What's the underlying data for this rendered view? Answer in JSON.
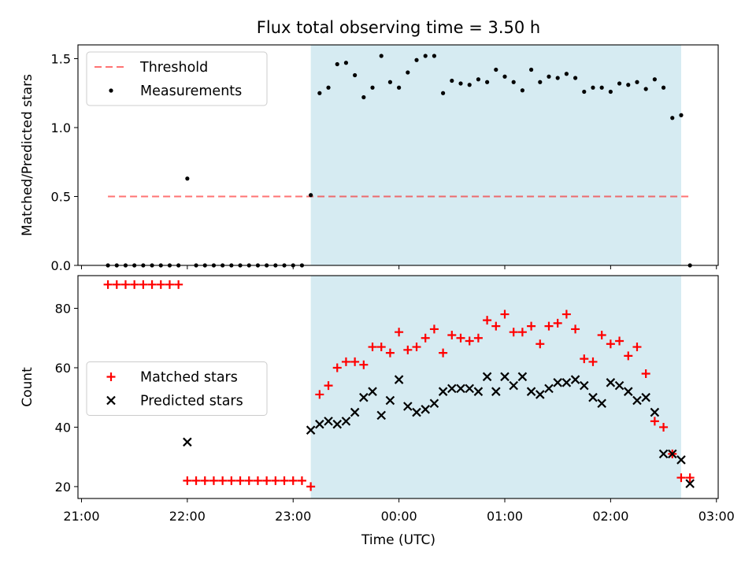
{
  "chart_data": {
    "title": "Flux total observing time = 3.50 h",
    "colors": {
      "observing_window": "#add8e6",
      "threshold": "#ff0000",
      "measurements": "#000000",
      "matched": "#ff0000",
      "predicted": "#000000"
    },
    "observing_window": {
      "start": "23:10",
      "end": "02:40"
    },
    "x_axis": {
      "label": "Time (UTC)",
      "range": [
        "20:58",
        "03:01"
      ],
      "ticks": [
        "21:00",
        "22:00",
        "23:00",
        "00:00",
        "01:00",
        "02:00",
        "03:00"
      ]
    },
    "panels": [
      {
        "type": "scatter",
        "ylabel": "Matched/Predicted stars",
        "ylim": [
          0,
          1.6
        ],
        "yticks": [
          "0.0",
          "0.5",
          "1.0",
          "1.5"
        ],
        "legend_position": "upper-left",
        "threshold": {
          "name": "Threshold",
          "value": 0.5,
          "x_range": [
            "21:15",
            "02:45"
          ]
        },
        "series": [
          {
            "name": "Measurements",
            "points": [
              [
                "21:15",
                0
              ],
              [
                "21:20",
                0
              ],
              [
                "21:25",
                0
              ],
              [
                "21:30",
                0
              ],
              [
                "21:35",
                0
              ],
              [
                "21:40",
                0
              ],
              [
                "21:45",
                0
              ],
              [
                "21:50",
                0
              ],
              [
                "21:55",
                0
              ],
              [
                "22:00",
                0.63
              ],
              [
                "22:05",
                0
              ],
              [
                "22:10",
                0
              ],
              [
                "22:15",
                0
              ],
              [
                "22:20",
                0
              ],
              [
                "22:25",
                0
              ],
              [
                "22:30",
                0
              ],
              [
                "22:35",
                0
              ],
              [
                "22:40",
                0
              ],
              [
                "22:45",
                0
              ],
              [
                "22:50",
                0
              ],
              [
                "22:55",
                0
              ],
              [
                "23:00",
                0
              ],
              [
                "23:05",
                0
              ],
              [
                "23:10",
                0.51
              ],
              [
                "23:15",
                1.25
              ],
              [
                "23:20",
                1.29
              ],
              [
                "23:25",
                1.46
              ],
              [
                "23:30",
                1.47
              ],
              [
                "23:35",
                1.38
              ],
              [
                "23:40",
                1.22
              ],
              [
                "23:45",
                1.29
              ],
              [
                "23:50",
                1.52
              ],
              [
                "23:55",
                1.33
              ],
              [
                "00:00",
                1.29
              ],
              [
                "00:05",
                1.4
              ],
              [
                "00:10",
                1.49
              ],
              [
                "00:15",
                1.52
              ],
              [
                "00:20",
                1.52
              ],
              [
                "00:25",
                1.25
              ],
              [
                "00:30",
                1.34
              ],
              [
                "00:35",
                1.32
              ],
              [
                "00:40",
                1.31
              ],
              [
                "00:45",
                1.35
              ],
              [
                "00:50",
                1.33
              ],
              [
                "00:55",
                1.42
              ],
              [
                "01:00",
                1.37
              ],
              [
                "01:05",
                1.33
              ],
              [
                "01:10",
                1.27
              ],
              [
                "01:15",
                1.42
              ],
              [
                "01:20",
                1.33
              ],
              [
                "01:25",
                1.37
              ],
              [
                "01:30",
                1.36
              ],
              [
                "01:35",
                1.39
              ],
              [
                "01:40",
                1.36
              ],
              [
                "01:45",
                1.26
              ],
              [
                "01:50",
                1.29
              ],
              [
                "01:55",
                1.29
              ],
              [
                "02:00",
                1.26
              ],
              [
                "02:05",
                1.32
              ],
              [
                "02:10",
                1.31
              ],
              [
                "02:15",
                1.33
              ],
              [
                "02:20",
                1.28
              ],
              [
                "02:25",
                1.35
              ],
              [
                "02:30",
                1.29
              ],
              [
                "02:35",
                1.07
              ],
              [
                "02:40",
                1.09
              ],
              [
                "02:45",
                0
              ]
            ]
          }
        ]
      },
      {
        "type": "scatter",
        "ylabel": "Count",
        "ylim": [
          16,
          91
        ],
        "yticks": [
          "20",
          "40",
          "60",
          "80"
        ],
        "legend_position": "center-left",
        "series": [
          {
            "name": "Matched stars",
            "marker": "plus",
            "points": [
              [
                "21:15",
                88
              ],
              [
                "21:20",
                88
              ],
              [
                "21:25",
                88
              ],
              [
                "21:30",
                88
              ],
              [
                "21:35",
                88
              ],
              [
                "21:40",
                88
              ],
              [
                "21:45",
                88
              ],
              [
                "21:50",
                88
              ],
              [
                "21:55",
                88
              ],
              [
                "22:00",
                22
              ],
              [
                "22:05",
                22
              ],
              [
                "22:10",
                22
              ],
              [
                "22:15",
                22
              ],
              [
                "22:20",
                22
              ],
              [
                "22:25",
                22
              ],
              [
                "22:30",
                22
              ],
              [
                "22:35",
                22
              ],
              [
                "22:40",
                22
              ],
              [
                "22:45",
                22
              ],
              [
                "22:50",
                22
              ],
              [
                "22:55",
                22
              ],
              [
                "23:00",
                22
              ],
              [
                "23:05",
                22
              ],
              [
                "23:10",
                20
              ],
              [
                "23:15",
                51
              ],
              [
                "23:20",
                54
              ],
              [
                "23:25",
                60
              ],
              [
                "23:30",
                62
              ],
              [
                "23:35",
                62
              ],
              [
                "23:40",
                61
              ],
              [
                "23:45",
                67
              ],
              [
                "23:50",
                67
              ],
              [
                "23:55",
                65
              ],
              [
                "00:00",
                72
              ],
              [
                "00:05",
                66
              ],
              [
                "00:10",
                67
              ],
              [
                "00:15",
                70
              ],
              [
                "00:20",
                73
              ],
              [
                "00:25",
                65
              ],
              [
                "00:30",
                71
              ],
              [
                "00:35",
                70
              ],
              [
                "00:40",
                69
              ],
              [
                "00:45",
                70
              ],
              [
                "00:50",
                76
              ],
              [
                "00:55",
                74
              ],
              [
                "01:00",
                78
              ],
              [
                "01:05",
                72
              ],
              [
                "01:10",
                72
              ],
              [
                "01:15",
                74
              ],
              [
                "01:20",
                68
              ],
              [
                "01:25",
                74
              ],
              [
                "01:30",
                75
              ],
              [
                "01:35",
                78
              ],
              [
                "01:40",
                73
              ],
              [
                "01:45",
                63
              ],
              [
                "01:50",
                62
              ],
              [
                "01:55",
                71
              ],
              [
                "02:00",
                68
              ],
              [
                "02:05",
                69
              ],
              [
                "02:10",
                64
              ],
              [
                "02:15",
                67
              ],
              [
                "02:20",
                58
              ],
              [
                "02:25",
                42
              ],
              [
                "02:30",
                40
              ],
              [
                "02:35",
                31
              ],
              [
                "02:40",
                23
              ],
              [
                "02:45",
                23
              ]
            ]
          },
          {
            "name": "Predicted stars",
            "marker": "x",
            "points": [
              [
                "22:00",
                35
              ],
              [
                "23:10",
                39
              ],
              [
                "23:15",
                41
              ],
              [
                "23:20",
                42
              ],
              [
                "23:25",
                41
              ],
              [
                "23:30",
                42
              ],
              [
                "23:35",
                45
              ],
              [
                "23:40",
                50
              ],
              [
                "23:45",
                52
              ],
              [
                "23:50",
                44
              ],
              [
                "23:55",
                49
              ],
              [
                "00:00",
                56
              ],
              [
                "00:05",
                47
              ],
              [
                "00:10",
                45
              ],
              [
                "00:15",
                46
              ],
              [
                "00:20",
                48
              ],
              [
                "00:25",
                52
              ],
              [
                "00:30",
                53
              ],
              [
                "00:35",
                53
              ],
              [
                "00:40",
                53
              ],
              [
                "00:45",
                52
              ],
              [
                "00:50",
                57
              ],
              [
                "00:55",
                52
              ],
              [
                "01:00",
                57
              ],
              [
                "01:05",
                54
              ],
              [
                "01:10",
                57
              ],
              [
                "01:15",
                52
              ],
              [
                "01:20",
                51
              ],
              [
                "01:25",
                53
              ],
              [
                "01:30",
                55
              ],
              [
                "01:35",
                55
              ],
              [
                "01:40",
                56
              ],
              [
                "01:45",
                54
              ],
              [
                "01:50",
                50
              ],
              [
                "01:55",
                48
              ],
              [
                "02:00",
                55
              ],
              [
                "02:05",
                54
              ],
              [
                "02:10",
                52
              ],
              [
                "02:15",
                49
              ],
              [
                "02:20",
                50
              ],
              [
                "02:25",
                45
              ],
              [
                "02:30",
                31
              ],
              [
                "02:35",
                31
              ],
              [
                "02:40",
                29
              ],
              [
                "02:45",
                21
              ]
            ]
          }
        ]
      }
    ]
  }
}
